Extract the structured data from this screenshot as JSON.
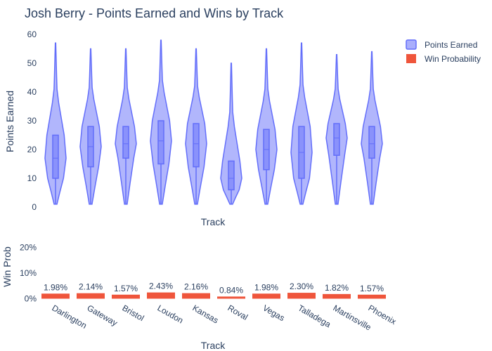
{
  "chart_data": [
    {
      "type": "violin",
      "title": "Josh Berry - Points Earned and Wins by Track",
      "xlabel": "Track",
      "ylabel": "Points Earned",
      "ylim": [
        0,
        60
      ],
      "yticks": [
        0,
        10,
        20,
        30,
        40,
        50,
        60
      ],
      "grid": false,
      "categories": [
        "Darlington",
        "Gateway",
        "Bristol",
        "Loudon",
        "Kansas",
        "Roval",
        "Vegas",
        "Talladega",
        "Martinsville",
        "Phoenix"
      ],
      "series": [
        {
          "name": "Points Earned",
          "color": "#636efa",
          "fill": "#a9aefc",
          "stats": [
            {
              "min": 1,
              "q1": 10,
              "median": 17,
              "q3": 25,
              "max": 57
            },
            {
              "min": 1,
              "q1": 14,
              "median": 21,
              "q3": 28,
              "max": 55
            },
            {
              "min": 1,
              "q1": 17,
              "median": 22,
              "q3": 28,
              "max": 55
            },
            {
              "min": 1,
              "q1": 15,
              "median": 23,
              "q3": 30,
              "max": 58
            },
            {
              "min": 1,
              "q1": 14,
              "median": 22,
              "q3": 29,
              "max": 55
            },
            {
              "min": 1,
              "q1": 6,
              "median": 10,
              "q3": 16,
              "max": 50
            },
            {
              "min": 1,
              "q1": 13,
              "median": 20,
              "q3": 27,
              "max": 55
            },
            {
              "min": 1,
              "q1": 10,
              "median": 19,
              "q3": 28,
              "max": 57
            },
            {
              "min": 1,
              "q1": 18,
              "median": 24,
              "q3": 29,
              "max": 53
            },
            {
              "min": 1,
              "q1": 17,
              "median": 22,
              "q3": 28,
              "max": 54
            }
          ]
        }
      ],
      "legend": {
        "placement": "top-right"
      }
    },
    {
      "type": "bar",
      "xlabel": "Track",
      "ylabel": "Win Prob",
      "ylim": [
        0,
        0.25
      ],
      "yticks": [
        0,
        0.1,
        0.2
      ],
      "ytick_labels": [
        "0%",
        "10%",
        "20%"
      ],
      "categories": [
        "Darlington",
        "Gateway",
        "Bristol",
        "Loudon",
        "Kansas",
        "Roval",
        "Vegas",
        "Talladega",
        "Martinsville",
        "Phoenix"
      ],
      "series": [
        {
          "name": "Win Probability",
          "color": "#ef553b",
          "values": [
            0.0198,
            0.0214,
            0.0157,
            0.0243,
            0.0216,
            0.0084,
            0.0198,
            0.023,
            0.0182,
            0.0157
          ],
          "labels": [
            "1.98%",
            "2.14%",
            "1.57%",
            "2.43%",
            "2.16%",
            "0.84%",
            "1.98%",
            "2.30%",
            "1.82%",
            "1.57%"
          ]
        }
      ]
    }
  ]
}
